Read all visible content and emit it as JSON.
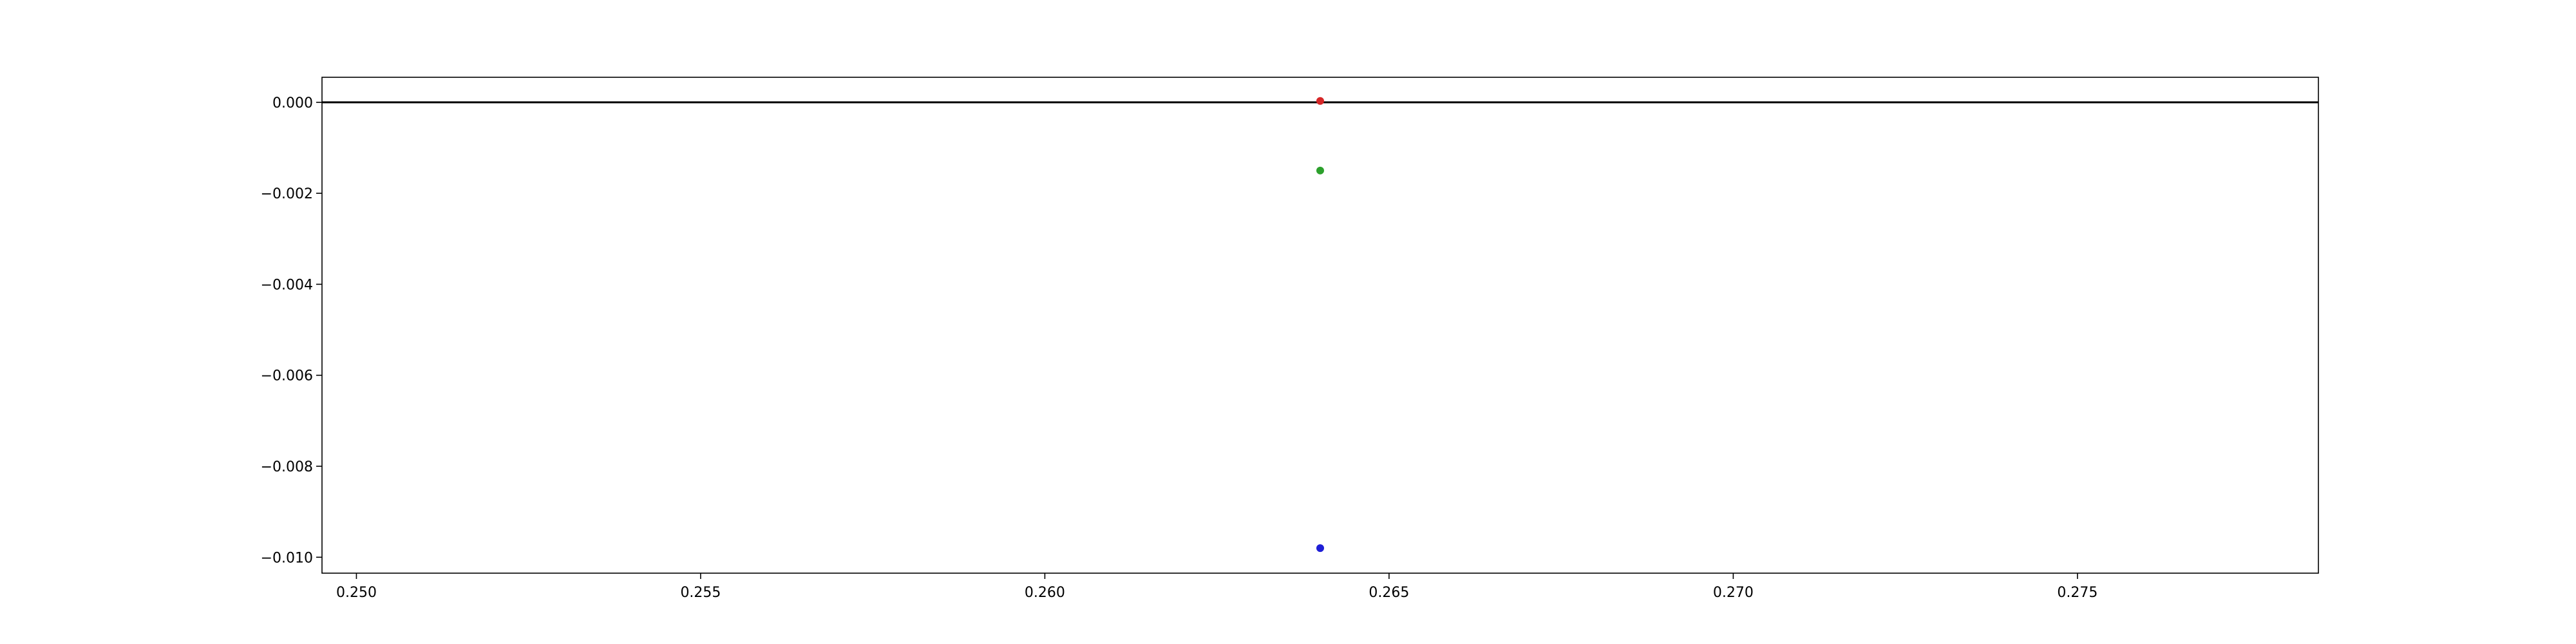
{
  "chart_data": {
    "type": "scatter",
    "title": "",
    "xlabel": "",
    "ylabel": "",
    "xlim": [
      0.2495,
      0.2785
    ],
    "ylim": [
      -0.01035,
      0.00055
    ],
    "grid": false,
    "legend": null,
    "x_ticks": [
      {
        "value": 0.25,
        "label": "0.250"
      },
      {
        "value": 0.255,
        "label": "0.255"
      },
      {
        "value": 0.26,
        "label": "0.260"
      },
      {
        "value": 0.265,
        "label": "0.265"
      },
      {
        "value": 0.27,
        "label": "0.270"
      },
      {
        "value": 0.275,
        "label": "0.275"
      }
    ],
    "y_ticks": [
      {
        "value": 0.0,
        "label": "0.000"
      },
      {
        "value": -0.002,
        "label": "−0.002"
      },
      {
        "value": -0.004,
        "label": "−0.004"
      },
      {
        "value": -0.006,
        "label": "−0.006"
      },
      {
        "value": -0.008,
        "label": "−0.008"
      },
      {
        "value": -0.01,
        "label": "−0.010"
      }
    ],
    "reference_line": {
      "y": 0.0,
      "color": "#000000"
    },
    "points": [
      {
        "x": 0.264,
        "y": 3e-05,
        "color": "#d62728"
      },
      {
        "x": 0.264,
        "y": -0.0015,
        "color": "#2ca02c"
      },
      {
        "x": 0.264,
        "y": -0.0098,
        "color": "#1f1fd6"
      }
    ]
  }
}
